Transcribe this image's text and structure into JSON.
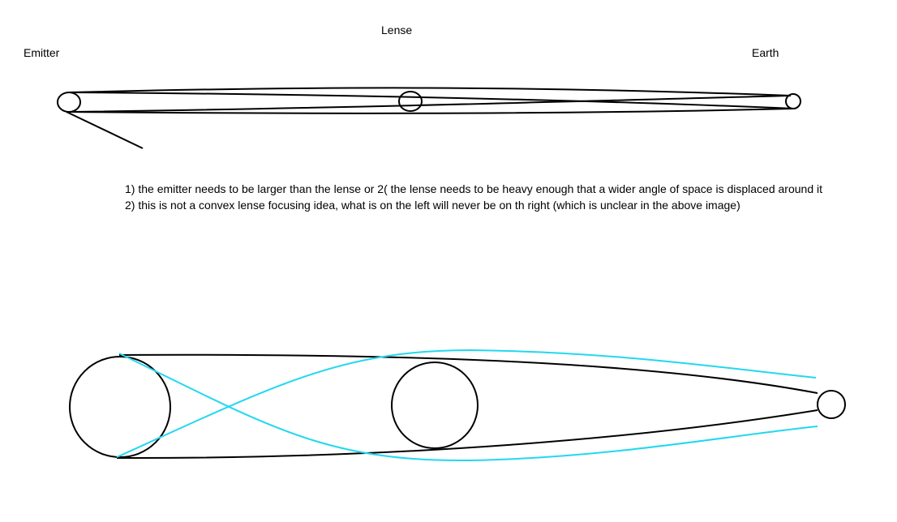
{
  "labels": {
    "lense": "Lense",
    "emitter": "Emitter",
    "earth": "Earth"
  },
  "notes": [
    "1) the emitter needs to be larger than the lense or 2( the lense needs to be heavy enough that a wider angle of space is displaced around it",
    "2) this is not a convex lense focusing idea, what is on the left will never be on th right (which is unclear in the above image)"
  ],
  "colors": {
    "ink": "#000000",
    "light_path": "#22d8ee",
    "background": "#ffffff"
  }
}
